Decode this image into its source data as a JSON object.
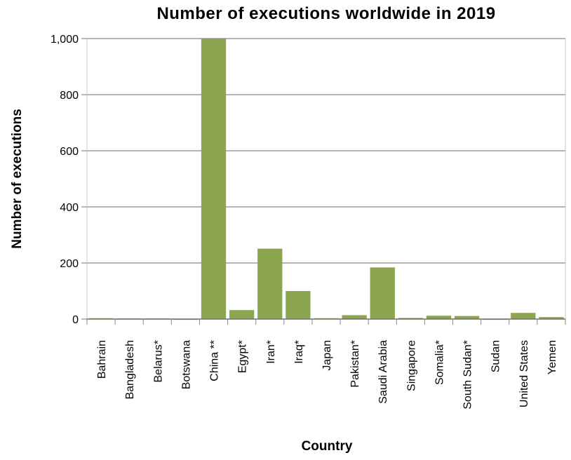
{
  "chart_data": {
    "type": "bar",
    "title": "Number of executions worldwide in 2019",
    "xlabel": "Country",
    "ylabel": "Number of executions",
    "categories": [
      "Bahrain",
      "Bangladesh",
      "Belarus*",
      "Botswana",
      "China **",
      "Egypt*",
      "Iran*",
      "Iraq*",
      "Japan",
      "Pakistan*",
      "Saudi Arabia",
      "Singapore",
      "Somalia*",
      "South Sudan*",
      "Sudan",
      "United States",
      "Yemen"
    ],
    "values": [
      3,
      2,
      2,
      1,
      1000,
      32,
      251,
      100,
      3,
      14,
      184,
      4,
      12,
      11,
      1,
      22,
      7
    ],
    "ylim": [
      0,
      1000
    ],
    "yticks": [
      0,
      200,
      400,
      600,
      800,
      1000
    ],
    "ytick_labels": [
      "0",
      "200",
      "400",
      "600",
      "800",
      "1,000"
    ],
    "grid": true,
    "bar_color": "#8ba64f",
    "grid_color": "#888888"
  }
}
